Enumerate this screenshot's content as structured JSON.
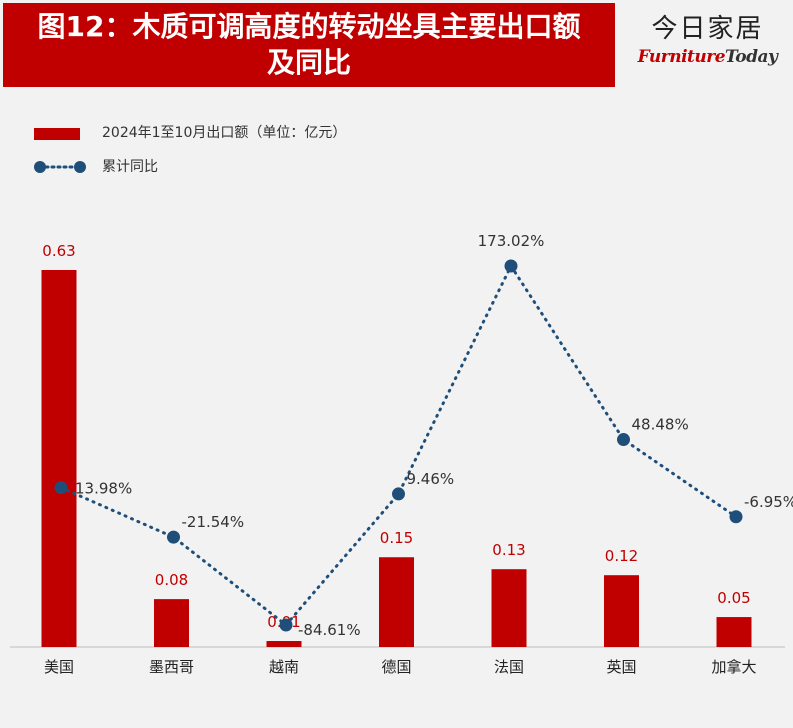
{
  "header": {
    "title": "图12：木质可调高度的转动坐具主要出口额\n及同比",
    "brand_cn": "今日家居",
    "brand_en_part1": "Furniture",
    "brand_en_part2": "Today"
  },
  "legend": {
    "bar_label": "2024年1至10月出口额（单位：亿元）",
    "line_label": "累计同比"
  },
  "colors": {
    "bar": "#c00000",
    "line": "#1f4e79",
    "bar_label": "#c00000",
    "line_label": "#333333"
  },
  "chart_data": {
    "type": "bar",
    "categories": [
      "美国",
      "墨西哥",
      "越南",
      "德国",
      "法国",
      "英国",
      "加拿大"
    ],
    "series": [
      {
        "name": "2024年1至10月出口额（单位：亿元）",
        "type": "bar",
        "values": [
          0.63,
          0.08,
          0.01,
          0.15,
          0.13,
          0.12,
          0.05
        ],
        "labels": [
          "0.63",
          "0.08",
          "0.01",
          "0.15",
          "0.13",
          "0.12",
          "0.05"
        ]
      },
      {
        "name": "累计同比",
        "type": "line",
        "style": "dotted",
        "values": [
          13.98,
          -21.54,
          -84.61,
          9.46,
          173.02,
          48.48,
          -6.95
        ],
        "labels": [
          "13.98%",
          "-21.54%",
          "-84.61%",
          "9.46%",
          "173.02%",
          "48.48%",
          "-6.95%"
        ]
      }
    ],
    "bar_ylim": [
      0,
      0.63
    ],
    "line_ylim": [
      -84.61,
      173.02
    ],
    "grid": false,
    "legend_position": "top-left"
  }
}
